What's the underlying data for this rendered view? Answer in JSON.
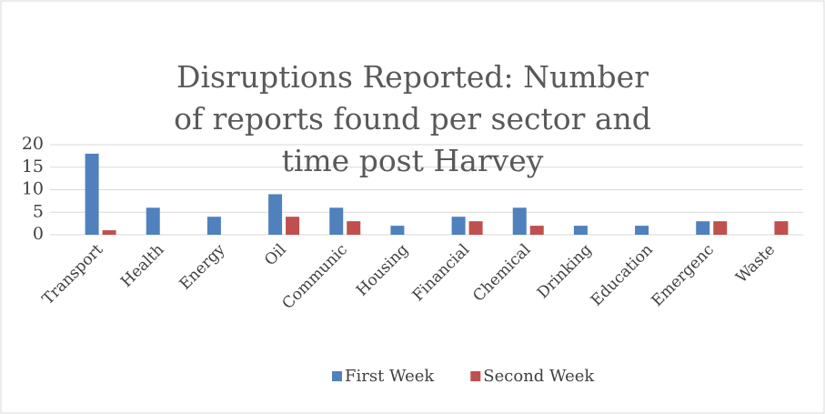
{
  "chart_data": {
    "type": "bar",
    "title": "Disruptions Reported: Number of reports found per sector and time post Harvey",
    "categories": [
      "Transport",
      "Health",
      "Energy",
      "Oil",
      "Communic",
      "Housing",
      "Financial",
      "Chemical",
      "Drinking",
      "Education",
      "Emergenc",
      "Waste"
    ],
    "series": [
      {
        "name": "First Week",
        "color": "#4f81bd",
        "values": [
          18,
          6,
          4,
          9,
          6,
          2,
          4,
          6,
          2,
          2,
          3,
          0
        ]
      },
      {
        "name": "Second Week",
        "color": "#c0504d",
        "values": [
          1,
          0,
          0,
          4,
          3,
          0,
          3,
          2,
          0,
          0,
          3,
          3
        ]
      }
    ],
    "ylim": [
      0,
      20
    ],
    "yticks": [
      0,
      5,
      10,
      15,
      20
    ],
    "grid": true,
    "legend": "bottom"
  }
}
